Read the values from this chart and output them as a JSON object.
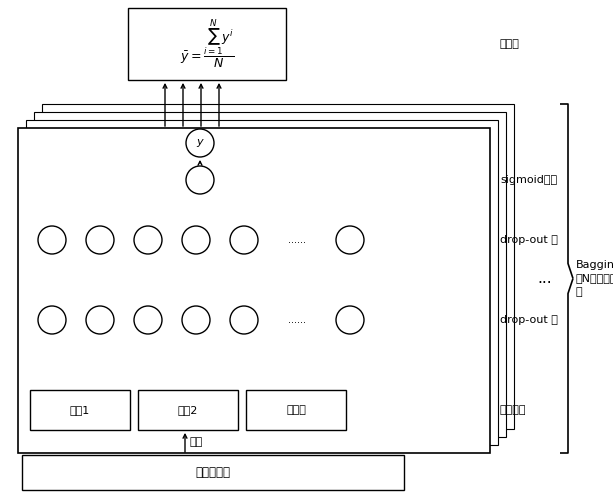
{
  "fig_width": 6.13,
  "fig_height": 4.99,
  "dpi": 100,
  "bg_color": "#ffffff",
  "output_formula": "$\\bar{y}=\\dfrac{\\sum_{i=1}^{N}y^{i}}{N}$",
  "output_label": "输出层",
  "sigmoid_label": "sigmoid函数",
  "dropout1_label": "drop-out 层",
  "dropout2_label": "drop-out 层",
  "input_label": "输入向量",
  "sample_label": "采样",
  "pool_label": "病例样本集",
  "bagging_label": "Bagging方法\n将N个基模型集\n成",
  "input_nodes": [
    "病例1",
    "病例2",
    "互特征"
  ]
}
